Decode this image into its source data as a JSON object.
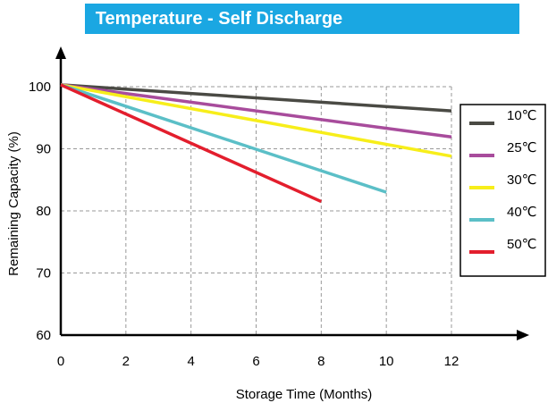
{
  "chart_data": {
    "type": "line",
    "title": "Temperature - Self Discharge",
    "xlabel": "Storage Time (Months)",
    "ylabel": "Remaining Capacity (%)",
    "xlim": [
      0,
      12
    ],
    "ylim": [
      60,
      100
    ],
    "xticks": [
      0,
      2,
      4,
      6,
      8,
      10,
      12
    ],
    "yticks": [
      60,
      70,
      80,
      90,
      100
    ],
    "grid": true,
    "legend_position": "right",
    "series": [
      {
        "name": "10℃",
        "color": "#4a4a44",
        "x": [
          0,
          12
        ],
        "y": [
          100.3,
          96.1
        ]
      },
      {
        "name": "25℃",
        "color": "#a84c9c",
        "x": [
          0,
          12
        ],
        "y": [
          100.3,
          91.9
        ]
      },
      {
        "name": "30℃",
        "color": "#f7ee1a",
        "x": [
          0,
          12
        ],
        "y": [
          100.3,
          88.8
        ]
      },
      {
        "name": "40℃",
        "color": "#5bbfc7",
        "x": [
          0,
          10
        ],
        "y": [
          100.3,
          83.0
        ]
      },
      {
        "name": "50℃",
        "color": "#e31e2d",
        "x": [
          0,
          8
        ],
        "y": [
          100.3,
          81.5
        ]
      }
    ]
  }
}
